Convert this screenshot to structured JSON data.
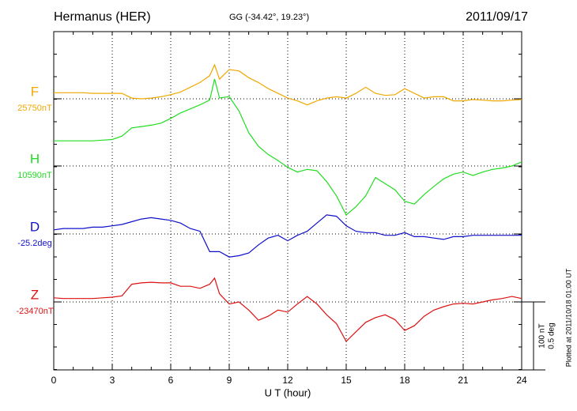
{
  "chart_data": {
    "type": "line",
    "title": "Hermanus (HER)",
    "subtitle": "GG (-34.42°,  19.23°)",
    "date": "2011/09/17",
    "xlabel": "U T (hour)",
    "footer": "Plotted at 2011/10/18 01:00 UT",
    "xlim": [
      0,
      24
    ],
    "xticks": [
      0,
      3,
      6,
      9,
      12,
      15,
      18,
      21,
      24
    ],
    "grid": true,
    "scale_labels": [
      "100 nT",
      "0.5 deg"
    ],
    "x": [
      0,
      0.5,
      1,
      1.5,
      2,
      2.5,
      3,
      3.5,
      4,
      4.5,
      5,
      5.5,
      6,
      6.5,
      7,
      7.5,
      8,
      8.25,
      8.5,
      9,
      9.5,
      10,
      10.5,
      11,
      11.5,
      12,
      12.5,
      13,
      13.5,
      14,
      14.5,
      15,
      15.5,
      16,
      16.5,
      17,
      17.5,
      18,
      18.5,
      19,
      19.5,
      20,
      20.5,
      21,
      21.5,
      22,
      22.5,
      23,
      23.5,
      24
    ],
    "series": [
      {
        "name": "F",
        "baseline_label": "25750nT",
        "color": "#f0a800",
        "full_scale": 100,
        "values": [
          9,
          9,
          9,
          9,
          8,
          8,
          8,
          8,
          1,
          0,
          1,
          3,
          6,
          10,
          17,
          24,
          34,
          50,
          29,
          43,
          41,
          31,
          24,
          15,
          8,
          1,
          -3,
          -9,
          -3,
          1,
          3,
          1,
          8,
          17,
          8,
          5,
          6,
          15,
          8,
          1,
          3,
          3,
          -3,
          -3,
          -1,
          -2,
          -3,
          -3,
          -2,
          -1
        ]
      },
      {
        "name": "H",
        "baseline_label": "10590nT",
        "color": "#22dd22",
        "full_scale": 100,
        "values": [
          37,
          37,
          37,
          37,
          37,
          38,
          39,
          44,
          56,
          58,
          60,
          63,
          70,
          78,
          84,
          90,
          97,
          128,
          100,
          102,
          81,
          49,
          29,
          17,
          8,
          -2,
          -9,
          -5,
          -7,
          -23,
          -44,
          -72,
          -60,
          -44,
          -17,
          -26,
          -35,
          -52,
          -56,
          -42,
          -30,
          -19,
          -12,
          -9,
          -14,
          -9,
          -5,
          -3,
          0,
          6
        ]
      },
      {
        "name": "D",
        "baseline_label": "-25.2deg",
        "color": "#1010cc",
        "full_scale": 0.5,
        "values": [
          0.03,
          0.04,
          0.04,
          0.04,
          0.05,
          0.05,
          0.06,
          0.07,
          0.09,
          0.11,
          0.12,
          0.11,
          0.1,
          0.08,
          0.04,
          0.02,
          -0.13,
          -0.13,
          -0.13,
          -0.17,
          -0.16,
          -0.14,
          -0.08,
          -0.03,
          -0.01,
          -0.05,
          -0.01,
          0.02,
          0.08,
          0.14,
          0.13,
          0.06,
          0.02,
          0.01,
          0.01,
          -0.01,
          -0.01,
          0.01,
          -0.02,
          -0.02,
          -0.03,
          -0.04,
          -0.02,
          -0.02,
          -0.01,
          -0.01,
          -0.01,
          -0.01,
          -0.01,
          -0.01
        ]
      },
      {
        "name": "Z",
        "baseline_label": "-23470nT",
        "color": "#dd1111",
        "full_scale": 100,
        "values": [
          6,
          5,
          5,
          5,
          5,
          6,
          7,
          9,
          26,
          28,
          29,
          28,
          28,
          23,
          23,
          20,
          26,
          35,
          12,
          -3,
          0,
          -12,
          -27,
          -21,
          -12,
          -15,
          -3,
          8,
          -3,
          -19,
          -32,
          -58,
          -44,
          -30,
          -23,
          -19,
          -26,
          -42,
          -35,
          -21,
          -12,
          -7,
          -3,
          -2,
          -3,
          0,
          3,
          5,
          8,
          5
        ]
      }
    ]
  }
}
